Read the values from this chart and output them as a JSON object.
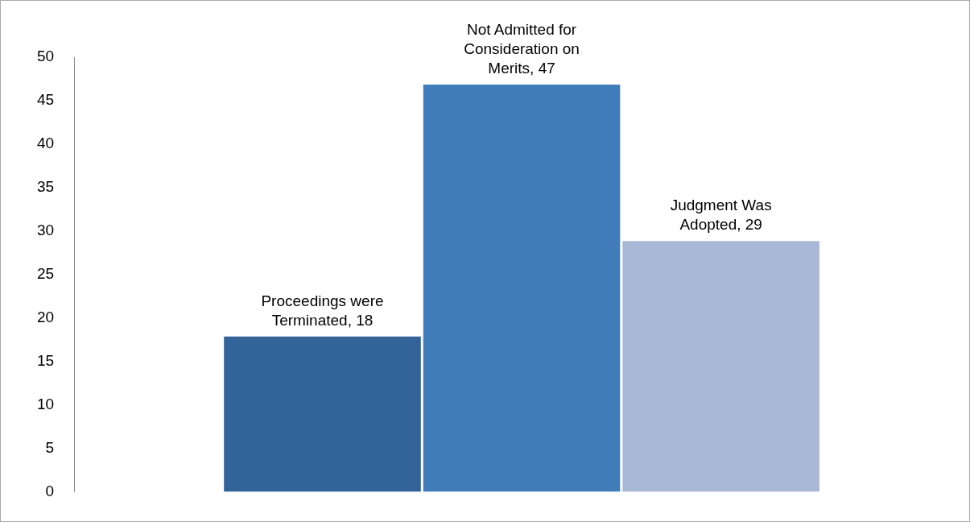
{
  "chart_data": {
    "type": "bar",
    "categories": [
      null
    ],
    "series": [
      {
        "color": "#326399",
        "values": [
          18
        ],
        "value_labels": [
          "Proceedings were Terminated, 18"
        ]
      },
      {
        "color": "#427dbb",
        "values": [
          47
        ],
        "value_labels": [
          "Not Admitted for Consideration on Merits, 47"
        ]
      },
      {
        "color": "#a9b8d7",
        "values": [
          29
        ],
        "value_labels": [
          "Judgment Was Adopted, 29"
        ]
      }
    ],
    "ylim": [
      0,
      50
    ],
    "yticks": [
      0,
      5,
      10,
      15,
      20,
      25,
      30,
      35,
      40,
      45,
      50
    ],
    "grid": false,
    "legend": false
  }
}
